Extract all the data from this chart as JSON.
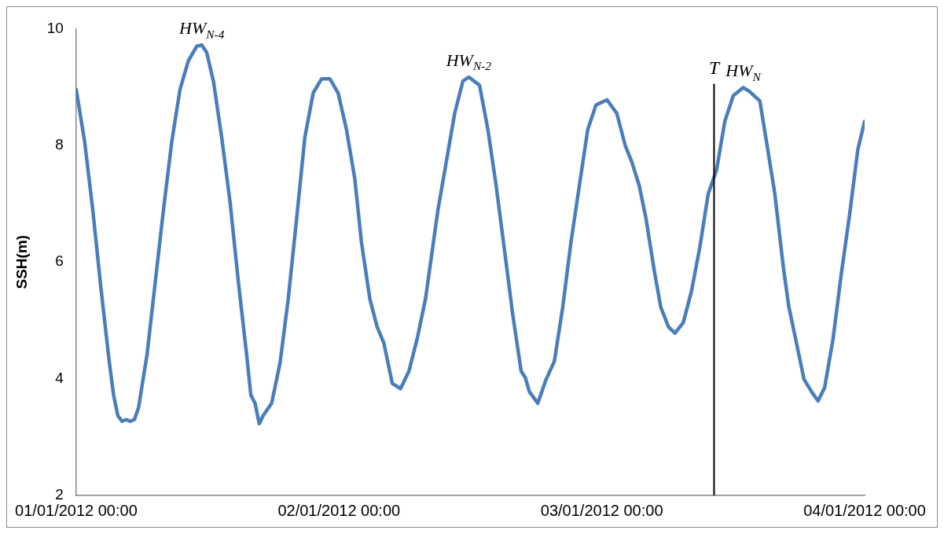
{
  "chart_data": {
    "type": "line",
    "ylabel": "SSH(m)",
    "x": [
      "2012-01-01T00:00",
      "2012-01-01T00:46",
      "2012-01-01T01:31",
      "2012-01-01T02:17",
      "2012-01-01T03:02",
      "2012-01-01T03:25",
      "2012-01-01T03:48",
      "2012-01-01T04:11",
      "2012-01-01T04:34",
      "2012-01-01T04:56",
      "2012-01-01T05:19",
      "2012-01-01T05:42",
      "2012-01-01T06:28",
      "2012-01-01T07:13",
      "2012-01-01T07:58",
      "2012-01-01T08:44",
      "2012-01-01T09:29",
      "2012-01-01T10:15",
      "2012-01-01T11:01",
      "2012-01-01T11:28",
      "2012-01-01T11:55",
      "2012-01-01T12:32",
      "2012-01-01T13:17",
      "2012-01-01T14:03",
      "2012-01-01T14:49",
      "2012-01-01T15:34",
      "2012-01-01T15:57",
      "2012-01-01T16:20",
      "2012-01-01T16:43",
      "2012-01-01T17:05",
      "2012-01-01T17:51",
      "2012-01-01T18:37",
      "2012-01-01T19:22",
      "2012-01-01T20:08",
      "2012-01-01T20:53",
      "2012-01-01T21:39",
      "2012-01-01T22:25",
      "2012-01-01T23:10",
      "2012-01-01T23:55",
      "2012-01-02T00:41",
      "2012-01-02T01:26",
      "2012-01-02T02:03",
      "2012-01-02T02:49",
      "2012-01-02T03:29",
      "2012-01-02T04:06",
      "2012-01-02T04:52",
      "2012-01-02T05:37",
      "2012-01-02T06:23",
      "2012-01-02T07:08",
      "2012-01-02T07:54",
      "2012-01-02T09:02",
      "2012-01-02T09:48",
      "2012-01-02T10:34",
      "2012-01-02T11:19",
      "2012-01-02T11:51",
      "2012-01-02T12:50",
      "2012-01-02T13:36",
      "2012-01-02T14:21",
      "2012-01-02T15:07",
      "2012-01-02T15:52",
      "2012-01-02T16:38",
      "2012-01-02T17:01",
      "2012-01-02T17:23",
      "2012-01-02T18:09",
      "2012-01-02T18:55",
      "2012-01-02T19:40",
      "2012-01-02T20:26",
      "2012-01-02T21:11",
      "2012-01-02T21:57",
      "2012-01-02T22:43",
      "2012-01-02T23:28",
      "2012-01-03T00:28",
      "2012-01-03T01:22",
      "2012-01-03T02:08",
      "2012-01-03T02:44",
      "2012-01-03T03:25",
      "2012-01-03T04:02",
      "2012-01-03T04:47",
      "2012-01-03T05:23",
      "2012-01-03T06:05",
      "2012-01-03T06:41",
      "2012-01-03T07:26",
      "2012-01-03T08:12",
      "2012-01-03T08:58",
      "2012-01-03T09:43",
      "2012-01-03T10:29",
      "2012-01-03T11:14",
      "2012-01-03T12:00",
      "2012-01-03T12:55",
      "2012-01-03T13:31",
      "2012-01-03T14:26",
      "2012-01-03T15:02",
      "2012-01-03T15:48",
      "2012-01-03T16:34",
      "2012-01-03T17:05",
      "2012-01-03T17:42",
      "2012-01-03T18:28",
      "2012-01-03T19:13",
      "2012-01-03T19:45",
      "2012-01-03T20:21",
      "2012-01-03T21:07",
      "2012-01-03T21:52",
      "2012-01-03T22:38",
      "2012-01-03T23:23",
      "2012-01-04T00:00"
    ],
    "series": [
      {
        "color": "#4a7ebb",
        "values": [
          8.96,
          8.07,
          6.89,
          5.51,
          4.27,
          3.72,
          3.37,
          3.27,
          3.3,
          3.27,
          3.3,
          3.51,
          4.41,
          5.65,
          6.89,
          8.07,
          8.96,
          9.45,
          9.7,
          9.72,
          9.59,
          9.1,
          8.14,
          7.03,
          5.65,
          4.41,
          3.72,
          3.58,
          3.23,
          3.37,
          3.58,
          4.27,
          5.37,
          6.75,
          8.14,
          8.9,
          9.14,
          9.14,
          8.9,
          8.27,
          7.44,
          6.34,
          5.37,
          4.89,
          4.61,
          3.92,
          3.83,
          4.13,
          4.68,
          5.37,
          6.89,
          7.72,
          8.55,
          9.1,
          9.17,
          9.03,
          8.27,
          7.31,
          6.2,
          5.1,
          4.13,
          4.02,
          3.78,
          3.58,
          3.99,
          4.3,
          5.23,
          6.34,
          7.31,
          8.27,
          8.69,
          8.78,
          8.55,
          8,
          7.72,
          7.31,
          6.75,
          5.86,
          5.23,
          4.89,
          4.78,
          4.96,
          5.51,
          6.27,
          7.17,
          7.58,
          8.41,
          8.85,
          8.99,
          8.92,
          8.76,
          8.07,
          7.17,
          5.93,
          5.23,
          4.68,
          3.99,
          3.76,
          3.62,
          3.85,
          4.68,
          5.79,
          6.82,
          7.93,
          8.41
        ]
      }
    ],
    "xlim": [
      "2012-01-01T00:00",
      "2012-01-04T00:00"
    ],
    "xticks": [
      {
        "value": "2012-01-01T00:00",
        "label": "01/01/2012 00:00"
      },
      {
        "value": "2012-01-02T00:00",
        "label": "02/01/2012 00:00"
      },
      {
        "value": "2012-01-03T00:00",
        "label": "03/01/2012 00:00"
      },
      {
        "value": "2012-01-04T00:00",
        "label": "04/01/2012 00:00"
      }
    ],
    "ylim": [
      2,
      10
    ],
    "yticks": [
      2,
      4,
      6,
      8,
      10
    ],
    "ref_lines": [
      {
        "axis": "x",
        "value": "2012-01-03T10:15",
        "label": "T",
        "color": "#000000"
      }
    ],
    "annotations": [
      {
        "text": "HW$_{N-4}$",
        "x": "2012-01-01T11:28",
        "y": 9.72
      },
      {
        "text": "HW$_{N-2}$",
        "x": "2012-01-02T11:51",
        "y": 9.17
      },
      {
        "text": "HW$_{N}$",
        "x": "2012-01-03T12:55",
        "y": 8.99
      }
    ],
    "grid": false,
    "legend": false,
    "marker": "none",
    "line_style": "solid"
  }
}
